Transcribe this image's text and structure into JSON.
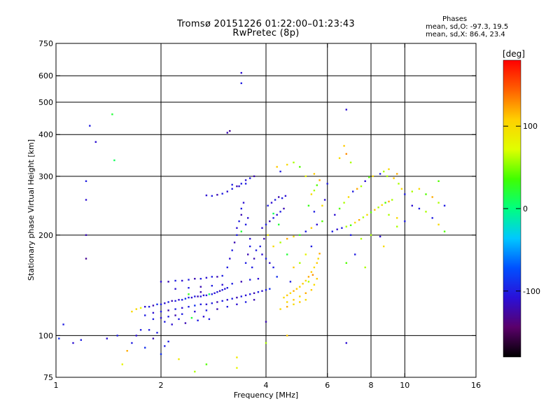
{
  "header": {
    "title_line1": "Tromsø 20151226 01:22:00–01:23:43",
    "title_line2": "RwPretec (8p)",
    "stats_title": "Phases",
    "stats_o": "mean, sd,O: -97.3, 19.5",
    "stats_x": "mean, sd,X:  86.4, 23.4"
  },
  "colorbar": {
    "unit_label": "[deg]",
    "range": [
      -180,
      180
    ],
    "ticks": [
      {
        "value": 100,
        "label": "100"
      },
      {
        "value": 0,
        "label": "0"
      },
      {
        "value": -100,
        "label": "-100"
      }
    ],
    "colors": [
      "#000000",
      "#5a006a",
      "#2a10d8",
      "#0050ff",
      "#00c8ff",
      "#00ff80",
      "#40ff00",
      "#e0ff00",
      "#ffd000",
      "#ff6000",
      "#ff0000"
    ]
  },
  "chart_data": {
    "type": "scatter",
    "title": "Tromsø 20151226 01:22:00–01:23:43",
    "subtitle": "RwPretec (8p)",
    "xlabel": "Frequency [MHz]",
    "ylabel": "Stationary phase Virtual Height [km]",
    "x_scale": "log",
    "y_scale": "log",
    "xlim": [
      1,
      16
    ],
    "ylim": [
      75,
      750
    ],
    "x_ticks": [
      {
        "value": 1,
        "label": "1"
      },
      {
        "value": 2,
        "label": "2"
      },
      {
        "value": 4,
        "label": "4"
      },
      {
        "value": 6,
        "label": "6"
      },
      {
        "value": 8,
        "label": "8"
      },
      {
        "value": 10,
        "label": "10"
      },
      {
        "value": 16,
        "label": "16"
      }
    ],
    "y_ticks": [
      {
        "value": 75,
        "label": "75"
      },
      {
        "value": 100,
        "label": "100"
      },
      {
        "value": 200,
        "label": "200"
      },
      {
        "value": 300,
        "label": "300"
      },
      {
        "value": 400,
        "label": "400"
      },
      {
        "value": 500,
        "label": "500"
      },
      {
        "value": 600,
        "label": "600"
      },
      {
        "value": 750,
        "label": "750"
      }
    ],
    "grid": true,
    "grid_x": [
      2,
      4,
      6,
      8,
      10
    ],
    "grid_y": [
      100,
      200,
      300,
      400,
      500,
      600
    ],
    "points": [
      [
        1.25,
        425,
        -100
      ],
      [
        1.3,
        380,
        -110
      ],
      [
        1.45,
        460,
        20
      ],
      [
        1.47,
        335,
        10
      ],
      [
        1.22,
        290,
        -100
      ],
      [
        1.22,
        255,
        -110
      ],
      [
        1.22,
        200,
        -120
      ],
      [
        1.22,
        170,
        -130
      ],
      [
        1.02,
        98,
        -90
      ],
      [
        1.05,
        108,
        -100
      ],
      [
        1.12,
        95,
        -110
      ],
      [
        1.18,
        97,
        -100
      ],
      [
        1.4,
        98,
        -110
      ],
      [
        1.5,
        100,
        -100
      ],
      [
        1.55,
        82,
        80
      ],
      [
        1.6,
        90,
        120
      ],
      [
        1.65,
        95,
        -100
      ],
      [
        1.7,
        100,
        -110
      ],
      [
        1.75,
        104,
        -100
      ],
      [
        1.8,
        92,
        -90
      ],
      [
        1.85,
        104,
        -100
      ],
      [
        1.9,
        98,
        -120
      ],
      [
        1.95,
        102,
        -100
      ],
      [
        2.0,
        88,
        -90
      ],
      [
        2.05,
        93,
        -100
      ],
      [
        2.1,
        96,
        -100
      ],
      [
        2.25,
        85,
        90
      ],
      [
        2.5,
        78,
        60
      ],
      [
        2.7,
        82,
        40
      ],
      [
        3.3,
        80,
        80
      ],
      [
        3.3,
        86,
        90
      ],
      [
        3.4,
        612,
        -110
      ],
      [
        3.4,
        570,
        -100
      ],
      [
        3.1,
        405,
        -120
      ],
      [
        3.15,
        410,
        -130
      ],
      [
        6.8,
        475,
        -110
      ],
      [
        6.8,
        95,
        -110
      ],
      [
        4.0,
        110,
        -120
      ],
      [
        4.6,
        100,
        110
      ],
      [
        4.0,
        95,
        60
      ],
      [
        1.65,
        118,
        100
      ],
      [
        1.7,
        120,
        100
      ],
      [
        1.75,
        121,
        80
      ],
      [
        1.8,
        122,
        -110
      ],
      [
        1.85,
        122,
        -100
      ],
      [
        1.9,
        123,
        -120
      ],
      [
        1.95,
        124,
        -90
      ],
      [
        2.0,
        124,
        -100
      ],
      [
        2.05,
        125,
        -110
      ],
      [
        2.1,
        126,
        -100
      ],
      [
        2.15,
        127,
        -120
      ],
      [
        2.2,
        127,
        -100
      ],
      [
        2.25,
        128,
        -110
      ],
      [
        2.3,
        128,
        -100
      ],
      [
        2.35,
        129,
        -90
      ],
      [
        2.4,
        130,
        -100
      ],
      [
        2.45,
        130,
        -110
      ],
      [
        2.5,
        131,
        -100
      ],
      [
        2.55,
        131,
        -120
      ],
      [
        2.6,
        131,
        -100
      ],
      [
        2.65,
        132,
        -110
      ],
      [
        2.7,
        132,
        -100
      ],
      [
        2.75,
        133,
        10
      ],
      [
        2.8,
        133,
        -100
      ],
      [
        2.85,
        134,
        -110
      ],
      [
        2.9,
        135,
        -100
      ],
      [
        2.95,
        136,
        -120
      ],
      [
        3.0,
        137,
        -100
      ],
      [
        3.05,
        138,
        -110
      ],
      [
        3.1,
        139,
        -100
      ],
      [
        2.6,
        135,
        -120
      ],
      [
        2.4,
        133,
        30
      ],
      [
        1.8,
        115,
        -100
      ],
      [
        1.9,
        117,
        -110
      ],
      [
        2.0,
        118,
        -100
      ],
      [
        2.1,
        119,
        -120
      ],
      [
        2.2,
        120,
        -100
      ],
      [
        2.3,
        121,
        -110
      ],
      [
        2.4,
        122,
        -100
      ],
      [
        2.5,
        123,
        -90
      ],
      [
        2.6,
        124,
        -100
      ],
      [
        2.7,
        124,
        -110
      ],
      [
        2.8,
        125,
        -100
      ],
      [
        2.9,
        126,
        -120
      ],
      [
        3.0,
        127,
        -100
      ],
      [
        3.1,
        128,
        -110
      ],
      [
        3.2,
        129,
        -100
      ],
      [
        3.3,
        130,
        -120
      ],
      [
        3.4,
        131,
        -100
      ],
      [
        3.5,
        132,
        -110
      ],
      [
        3.6,
        133,
        -100
      ],
      [
        3.7,
        134,
        -120
      ],
      [
        3.8,
        135,
        -100
      ],
      [
        3.9,
        136,
        -110
      ],
      [
        4.0,
        137,
        -100
      ],
      [
        4.1,
        138,
        -90
      ],
      [
        1.9,
        112,
        -100
      ],
      [
        2.0,
        113,
        -110
      ],
      [
        2.1,
        114,
        -100
      ],
      [
        2.2,
        115,
        -120
      ],
      [
        2.3,
        116,
        -100
      ],
      [
        2.5,
        118,
        -110
      ],
      [
        2.7,
        119,
        -100
      ],
      [
        2.9,
        120,
        -120
      ],
      [
        3.1,
        122,
        -100
      ],
      [
        3.3,
        124,
        -110
      ],
      [
        3.5,
        126,
        -100
      ],
      [
        3.7,
        128,
        -120
      ],
      [
        2.05,
        110,
        -100
      ],
      [
        2.15,
        108,
        -110
      ],
      [
        2.25,
        112,
        -100
      ],
      [
        2.35,
        109,
        -120
      ],
      [
        2.45,
        113,
        20
      ],
      [
        2.55,
        111,
        -100
      ],
      [
        2.65,
        114,
        -110
      ],
      [
        2.75,
        112,
        -100
      ],
      [
        2.0,
        145,
        -110
      ],
      [
        2.1,
        145,
        -120
      ],
      [
        2.2,
        146,
        -100
      ],
      [
        2.3,
        146,
        -110
      ],
      [
        2.4,
        147,
        -100
      ],
      [
        2.5,
        148,
        -120
      ],
      [
        2.6,
        148,
        -100
      ],
      [
        2.7,
        149,
        -110
      ],
      [
        2.8,
        150,
        -100
      ],
      [
        2.9,
        150,
        -120
      ],
      [
        3.0,
        151,
        -100
      ],
      [
        2.2,
        138,
        -110
      ],
      [
        2.4,
        139,
        -100
      ],
      [
        2.6,
        140,
        -120
      ],
      [
        2.8,
        141,
        -100
      ],
      [
        3.0,
        142,
        -110
      ],
      [
        3.2,
        143,
        -100
      ],
      [
        3.4,
        145,
        -120
      ],
      [
        3.6,
        147,
        -100
      ],
      [
        3.8,
        148,
        -110
      ],
      [
        3.1,
        160,
        -100
      ],
      [
        3.15,
        170,
        -110
      ],
      [
        3.2,
        180,
        -100
      ],
      [
        3.25,
        190,
        -120
      ],
      [
        3.3,
        200,
        -100
      ],
      [
        3.3,
        210,
        -110
      ],
      [
        3.35,
        220,
        -100
      ],
      [
        3.4,
        230,
        -120
      ],
      [
        3.4,
        240,
        -100
      ],
      [
        3.45,
        250,
        -110
      ],
      [
        3.5,
        165,
        -100
      ],
      [
        3.55,
        175,
        -120
      ],
      [
        3.6,
        185,
        -100
      ],
      [
        3.6,
        195,
        -110
      ],
      [
        3.65,
        160,
        -100
      ],
      [
        3.7,
        170,
        -120
      ],
      [
        3.5,
        215,
        -100
      ],
      [
        3.55,
        225,
        -110
      ],
      [
        3.4,
        205,
        20
      ],
      [
        3.75,
        180,
        -100
      ],
      [
        2.7,
        263,
        -110
      ],
      [
        2.8,
        262,
        -100
      ],
      [
        2.9,
        264,
        -120
      ],
      [
        3.0,
        266,
        -100
      ],
      [
        3.1,
        270,
        -110
      ],
      [
        3.2,
        275,
        -100
      ],
      [
        3.3,
        280,
        -120
      ],
      [
        3.4,
        285,
        -100
      ],
      [
        3.5,
        292,
        -110
      ],
      [
        3.6,
        296,
        -100
      ],
      [
        3.7,
        300,
        -120
      ],
      [
        3.5,
        285,
        -100
      ],
      [
        3.35,
        280,
        -110
      ],
      [
        3.2,
        283,
        -100
      ],
      [
        3.9,
        210,
        -110
      ],
      [
        4.0,
        215,
        -100
      ],
      [
        4.1,
        220,
        -120
      ],
      [
        4.2,
        225,
        -100
      ],
      [
        4.3,
        230,
        -110
      ],
      [
        4.4,
        235,
        -100
      ],
      [
        4.5,
        240,
        -120
      ],
      [
        4.05,
        245,
        -100
      ],
      [
        4.15,
        250,
        -110
      ],
      [
        4.25,
        255,
        -100
      ],
      [
        4.35,
        260,
        -120
      ],
      [
        4.45,
        258,
        -100
      ],
      [
        4.55,
        262,
        -110
      ],
      [
        4.2,
        232,
        10
      ],
      [
        4.35,
        215,
        20
      ],
      [
        4.0,
        170,
        -100
      ],
      [
        4.1,
        165,
        -110
      ],
      [
        4.2,
        160,
        -100
      ],
      [
        3.9,
        175,
        -110
      ],
      [
        3.85,
        185,
        -100
      ],
      [
        3.95,
        195,
        -120
      ],
      [
        4.05,
        200,
        90
      ],
      [
        4.5,
        130,
        100
      ],
      [
        4.6,
        132,
        110
      ],
      [
        4.7,
        134,
        100
      ],
      [
        4.8,
        136,
        120
      ],
      [
        4.9,
        138,
        110
      ],
      [
        5.0,
        140,
        100
      ],
      [
        5.1,
        143,
        110
      ],
      [
        5.2,
        146,
        100
      ],
      [
        5.3,
        150,
        120
      ],
      [
        5.4,
        155,
        110
      ],
      [
        5.5,
        160,
        100
      ],
      [
        5.6,
        165,
        110
      ],
      [
        5.65,
        170,
        100
      ],
      [
        5.7,
        176,
        120
      ],
      [
        4.6,
        126,
        100
      ],
      [
        4.8,
        128,
        110
      ],
      [
        5.0,
        131,
        100
      ],
      [
        5.2,
        134,
        120
      ],
      [
        5.4,
        137,
        110
      ],
      [
        5.5,
        142,
        100
      ],
      [
        5.6,
        148,
        110
      ],
      [
        4.4,
        120,
        100
      ],
      [
        4.6,
        122,
        120
      ],
      [
        4.8,
        124,
        100
      ],
      [
        5.0,
        126,
        110
      ],
      [
        5.2,
        128,
        100
      ],
      [
        5.3,
        145,
        60
      ],
      [
        5.45,
        152,
        130
      ],
      [
        4.2,
        185,
        100
      ],
      [
        4.4,
        190,
        60
      ],
      [
        4.6,
        195,
        120
      ],
      [
        4.8,
        198,
        100
      ],
      [
        5.0,
        200,
        30
      ],
      [
        5.2,
        205,
        -100
      ],
      [
        5.4,
        210,
        110
      ],
      [
        5.6,
        215,
        -110
      ],
      [
        5.8,
        220,
        40
      ],
      [
        5.0,
        165,
        60
      ],
      [
        5.2,
        175,
        80
      ],
      [
        5.4,
        185,
        -100
      ],
      [
        4.6,
        175,
        20
      ],
      [
        4.8,
        160,
        110
      ],
      [
        4.3,
        150,
        -90
      ],
      [
        4.7,
        145,
        -100
      ],
      [
        5.4,
        265,
        100
      ],
      [
        5.5,
        272,
        60
      ],
      [
        5.6,
        282,
        40
      ],
      [
        5.7,
        292,
        120
      ],
      [
        5.3,
        245,
        30
      ],
      [
        5.5,
        235,
        -100
      ],
      [
        5.8,
        245,
        100
      ],
      [
        5.9,
        255,
        -110
      ],
      [
        4.6,
        325,
        100
      ],
      [
        4.8,
        330,
        60
      ],
      [
        5.0,
        320,
        40
      ],
      [
        4.4,
        310,
        -100
      ],
      [
        5.2,
        300,
        80
      ],
      [
        4.3,
        320,
        110
      ],
      [
        6.7,
        370,
        110
      ],
      [
        6.8,
        350,
        130
      ],
      [
        6.2,
        205,
        -100
      ],
      [
        6.4,
        208,
        -110
      ],
      [
        6.6,
        210,
        -100
      ],
      [
        6.8,
        212,
        60
      ],
      [
        7.0,
        214,
        40
      ],
      [
        7.2,
        218,
        100
      ],
      [
        7.4,
        222,
        120
      ],
      [
        7.6,
        226,
        60
      ],
      [
        7.8,
        230,
        100
      ],
      [
        8.0,
        234,
        40
      ],
      [
        8.2,
        238,
        110
      ],
      [
        8.4,
        242,
        60
      ],
      [
        8.6,
        246,
        100
      ],
      [
        8.8,
        250,
        40
      ],
      [
        9.0,
        252,
        120
      ],
      [
        9.2,
        255,
        60
      ],
      [
        6.3,
        230,
        -110
      ],
      [
        6.5,
        240,
        40
      ],
      [
        6.7,
        250,
        60
      ],
      [
        6.9,
        260,
        100
      ],
      [
        7.1,
        270,
        -100
      ],
      [
        7.3,
        275,
        120
      ],
      [
        7.5,
        280,
        60
      ],
      [
        7.7,
        290,
        -110
      ],
      [
        7.9,
        298,
        40
      ],
      [
        8.1,
        300,
        100
      ],
      [
        8.5,
        305,
        -100
      ],
      [
        8.9,
        300,
        60
      ],
      [
        9.3,
        296,
        110
      ],
      [
        9.6,
        285,
        60
      ],
      [
        9.8,
        275,
        100
      ],
      [
        10.0,
        265,
        -100
      ],
      [
        10.5,
        270,
        60
      ],
      [
        11.0,
        275,
        100
      ],
      [
        11.5,
        265,
        40
      ],
      [
        12.0,
        260,
        120
      ],
      [
        12.5,
        250,
        60
      ],
      [
        13.0,
        245,
        -100
      ],
      [
        10.5,
        245,
        -110
      ],
      [
        11.0,
        240,
        -100
      ],
      [
        11.5,
        235,
        60
      ],
      [
        12.5,
        215,
        100
      ],
      [
        13.0,
        205,
        40
      ],
      [
        9.0,
        230,
        60
      ],
      [
        9.5,
        225,
        100
      ],
      [
        10.0,
        220,
        -100
      ],
      [
        8.0,
        200,
        60
      ],
      [
        8.5,
        198,
        -110
      ],
      [
        7.5,
        195,
        60
      ],
      [
        7.0,
        200,
        -100
      ],
      [
        6.8,
        165,
        40
      ],
      [
        7.2,
        175,
        -100
      ],
      [
        7.7,
        160,
        60
      ],
      [
        8.7,
        185,
        100
      ],
      [
        9.5,
        212,
        60
      ],
      [
        12.0,
        225,
        -100
      ],
      [
        12.5,
        290,
        40
      ],
      [
        8.7,
        310,
        60
      ],
      [
        9.0,
        315,
        100
      ],
      [
        9.5,
        305,
        120
      ],
      [
        7.0,
        330,
        60
      ],
      [
        6.5,
        340,
        100
      ],
      [
        5.5,
        305,
        110
      ],
      [
        6.0,
        285,
        -100
      ]
    ]
  }
}
